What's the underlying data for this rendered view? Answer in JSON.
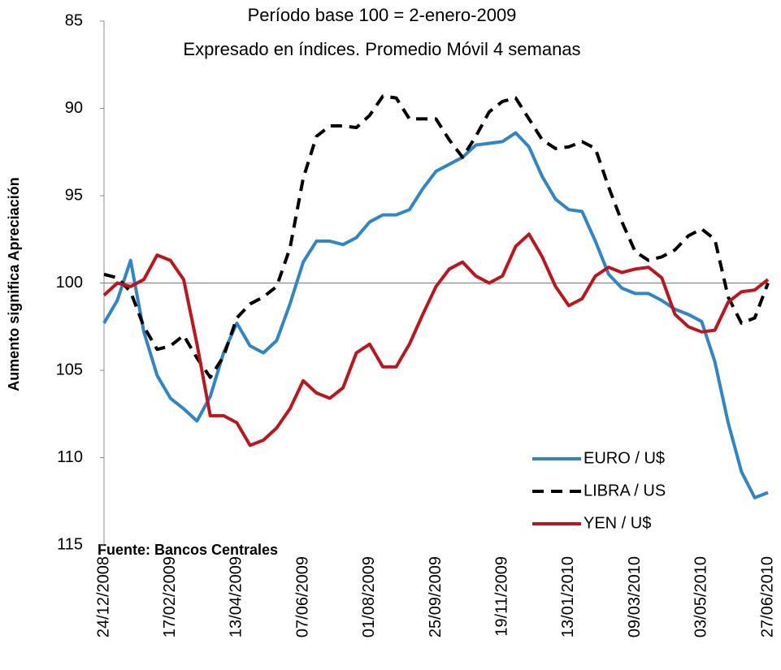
{
  "chart_data": {
    "type": "line",
    "title": "Período base 100 =  2-enero-2009",
    "subtitle": "Expresado en índices. Promedio Móvil 4 semanas",
    "y_label": "Aumento significa Apreciación",
    "source": "Fuente: Bancos Centrales",
    "y_inverted": true,
    "reference_line": 100,
    "ylim": [
      85,
      115
    ],
    "yticks": [
      85,
      90,
      95,
      100,
      105,
      110,
      115
    ],
    "categories": [
      "24/12/2008",
      null,
      null,
      null,
      null,
      "17/02/2009",
      null,
      null,
      null,
      null,
      "13/04/2009",
      null,
      null,
      null,
      null,
      "07/06/2009",
      null,
      null,
      null,
      null,
      "01/08/2009",
      null,
      null,
      null,
      null,
      "25/09/2009",
      null,
      null,
      null,
      null,
      "19/11/2009",
      null,
      null,
      null,
      null,
      "13/01/2010",
      null,
      null,
      null,
      null,
      "09/03/2010",
      null,
      null,
      null,
      null,
      "03/05/2010",
      null,
      null,
      null,
      null,
      "27/06/2010"
    ],
    "series": [
      {
        "name": "EURO / U$",
        "color": "#2e86c8",
        "dash": "solid",
        "values": [
          102.3,
          101,
          98.7,
          102.8,
          105.3,
          106.6,
          107.2,
          107.9,
          106.5,
          104,
          102.3,
          103.6,
          104,
          103.3,
          101.2,
          98.8,
          97.6,
          97.6,
          97.8,
          97.4,
          96.5,
          96.1,
          96.1,
          95.8,
          94.6,
          93.6,
          93.2,
          92.8,
          92.1,
          92,
          91.9,
          91.4,
          92.2,
          93.9,
          95.2,
          95.8,
          95.9,
          97.6,
          99.5,
          100.3,
          100.6,
          100.6,
          101,
          101.5,
          101.8,
          102.2,
          104.5,
          108,
          110.8,
          112.3,
          112
        ]
      },
      {
        "name": "LIBRA / US",
        "color": "#000000",
        "dash": "dashed",
        "values": [
          99.5,
          99.7,
          100.5,
          102.5,
          103.8,
          103.6,
          103,
          104.3,
          105.4,
          104.2,
          102,
          101.2,
          100.8,
          100.2,
          98,
          94,
          91.6,
          91,
          91,
          91.1,
          90.4,
          89.3,
          89.4,
          90.6,
          90.6,
          90.6,
          91.8,
          92.8,
          91.6,
          90.2,
          89.6,
          89.4,
          90.6,
          91.8,
          92.3,
          92.2,
          91.9,
          92.3,
          94.5,
          96.5,
          98.2,
          98.7,
          98.5,
          98.1,
          97.3,
          96.9,
          97.5,
          100.8,
          102.3,
          102,
          100
        ]
      },
      {
        "name": "YEN / U$",
        "color": "#c0141c",
        "dash": "solid",
        "values": [
          100.7,
          100,
          100.2,
          99.8,
          98.4,
          98.7,
          99.8,
          103.5,
          107.6,
          107.6,
          108,
          109.3,
          109,
          108.3,
          107.2,
          105.6,
          106.3,
          106.6,
          106,
          104,
          103.5,
          104.8,
          104.8,
          103.5,
          101.8,
          100.2,
          99.2,
          98.8,
          99.6,
          100,
          99.6,
          97.9,
          97.2,
          98.5,
          100.2,
          101.3,
          100.9,
          99.6,
          99.1,
          99.4,
          99.2,
          99.1,
          99.7,
          101.8,
          102.5,
          102.8,
          102.7,
          101.1,
          100.5,
          100.4,
          99.8
        ]
      }
    ]
  }
}
